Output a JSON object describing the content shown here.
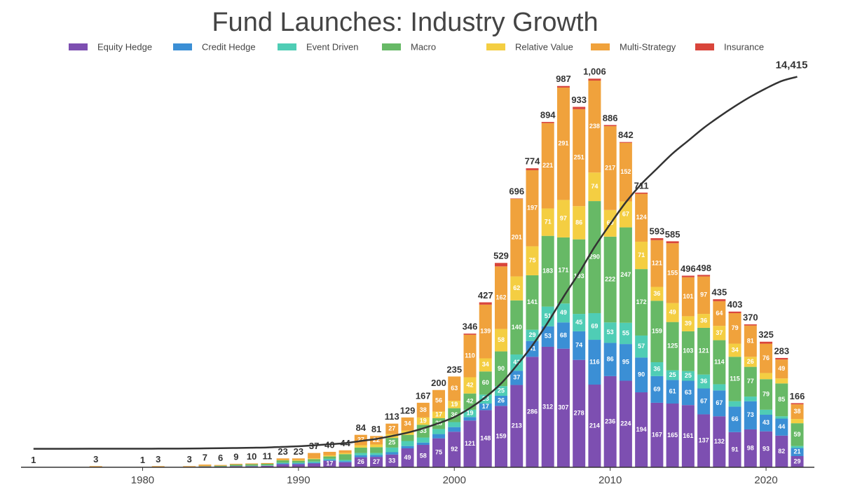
{
  "chart_data": {
    "type": "stacked_bar",
    "title": "Fund Launches: Industry Growth",
    "x": [
      1973,
      1977,
      1980,
      1981,
      1983,
      1984,
      1985,
      1986,
      1987,
      1988,
      1989,
      1990,
      1991,
      1992,
      1993,
      1994,
      1995,
      1996,
      1997,
      1998,
      1999,
      2000,
      2001,
      2002,
      2003,
      2004,
      2005,
      2006,
      2007,
      2008,
      2009,
      2010,
      2011,
      2012,
      2013,
      2014,
      2015,
      2016,
      2017,
      2018,
      2019,
      2020,
      2021,
      2022
    ],
    "xlim": [
      1972.2,
      2023.1
    ],
    "xticks": [
      1980,
      1990,
      2000,
      2010,
      2020
    ],
    "ylim": [
      0,
      1050
    ],
    "series": [
      {
        "name": "Equity Hedge",
        "color": "#7d4fb1",
        "values": [
          1,
          0,
          0,
          0,
          0,
          2,
          2,
          3,
          3,
          4,
          8,
          8,
          10,
          17,
          13,
          26,
          27,
          33,
          49,
          58,
          75,
          92,
          121,
          148,
          159,
          213,
          286,
          312,
          307,
          278,
          214,
          236,
          224,
          194,
          167,
          165,
          161,
          137,
          132,
          91,
          98,
          93,
          82,
          29
        ]
      },
      {
        "name": "Credit Hedge",
        "color": "#3b8fd5",
        "values": [
          0,
          0,
          0,
          0,
          0,
          0,
          0,
          0,
          0,
          0,
          2,
          2,
          2,
          2,
          3,
          5,
          5,
          6,
          6,
          6,
          11,
          12,
          9,
          17,
          26,
          37,
          41,
          53,
          68,
          74,
          116,
          86,
          95,
          90,
          69,
          61,
          63,
          67,
          67,
          66,
          73,
          43,
          44,
          21
        ]
      },
      {
        "name": "Event Driven",
        "color": "#4fcdb5",
        "values": [
          0,
          0,
          0,
          0,
          0,
          0,
          0,
          0,
          1,
          1,
          2,
          2,
          3,
          3,
          3,
          6,
          5,
          12,
          13,
          13,
          13,
          13,
          19,
          23,
          25,
          42,
          29,
          51,
          49,
          45,
          69,
          53,
          55,
          57,
          36,
          25,
          25,
          36,
          16,
          14,
          12,
          13,
          6,
          5
        ]
      },
      {
        "name": "Macro",
        "color": "#67b966",
        "values": [
          0,
          0,
          0,
          0,
          1,
          1,
          2,
          4,
          4,
          4,
          6,
          5,
          6,
          6,
          15,
          14,
          15,
          25,
          16,
          33,
          28,
          36,
          42,
          60,
          90,
          140,
          141,
          183,
          171,
          193,
          290,
          222,
          247,
          172,
          159,
          125,
          103,
          121,
          114,
          115,
          77,
          79,
          85,
          59
        ]
      },
      {
        "name": "Relative Value",
        "color": "#f4ce42",
        "values": [
          0,
          0,
          0,
          0,
          0,
          0,
          0,
          0,
          0,
          0,
          1,
          2,
          2,
          3,
          3,
          6,
          7,
          10,
          11,
          19,
          17,
          19,
          42,
          34,
          58,
          62,
          75,
          71,
          97,
          86,
          74,
          69,
          67,
          71,
          36,
          49,
          39,
          36,
          37,
          34,
          26,
          16,
          13,
          11
        ]
      },
      {
        "name": "Multi-Strategy",
        "color": "#f0a23c",
        "values": [
          0,
          3,
          1,
          3,
          2,
          4,
          2,
          2,
          2,
          2,
          4,
          4,
          14,
          9,
          7,
          27,
          22,
          27,
          34,
          38,
          56,
          63,
          110,
          139,
          162,
          201,
          197,
          221,
          291,
          251,
          238,
          217,
          152,
          124,
          121,
          155,
          101,
          97,
          64,
          79,
          81,
          76,
          49,
          38
        ]
      },
      {
        "name": "Insurance",
        "color": "#d9453b",
        "values": [
          0,
          0,
          0,
          0,
          0,
          0,
          0,
          0,
          0,
          0,
          0,
          0,
          0,
          0,
          0,
          0,
          0,
          0,
          0,
          0,
          0,
          0,
          3,
          6,
          9,
          1,
          5,
          3,
          4,
          6,
          5,
          3,
          2,
          3,
          5,
          5,
          4,
          4,
          5,
          4,
          3,
          5,
          4,
          3
        ]
      }
    ],
    "totals": [
      1,
      3,
      1,
      3,
      3,
      7,
      6,
      9,
      10,
      11,
      23,
      23,
      37,
      40,
      44,
      84,
      81,
      113,
      129,
      167,
      200,
      235,
      346,
      427,
      529,
      696,
      774,
      894,
      987,
      933,
      1006,
      886,
      842,
      711,
      593,
      585,
      496,
      498,
      435,
      403,
      370,
      325,
      283,
      166
    ],
    "total_labels": [
      "1",
      "3",
      "1",
      "3",
      "3",
      "7",
      "6",
      "9",
      "10",
      "11",
      "23",
      "23",
      "37",
      "40",
      "44",
      "84",
      "81",
      "113",
      "129",
      "167",
      "200",
      "235",
      "346",
      "427",
      "529",
      "696",
      "774",
      "894",
      "987",
      "933",
      "1,006",
      "886",
      "842",
      "711",
      "593",
      "585",
      "496",
      "498",
      "435",
      "403",
      "370",
      "325",
      "283",
      "166"
    ],
    "line": {
      "axis": "y2",
      "color": "#333333",
      "values": [
        1,
        4,
        5,
        8,
        11,
        18,
        24,
        33,
        43,
        54,
        77,
        100,
        137,
        177,
        221,
        305,
        386,
        499,
        628,
        795,
        995,
        1230,
        1576,
        2003,
        2532,
        3228,
        4002,
        4896,
        5883,
        6816,
        7822,
        8708,
        9550,
        10261,
        10854,
        11439,
        11935,
        12433,
        12868,
        13271,
        13641,
        13966,
        14249,
        14415
      ],
      "end_label": "14,415"
    },
    "y2lim": [
      -714,
      15000
    ]
  }
}
